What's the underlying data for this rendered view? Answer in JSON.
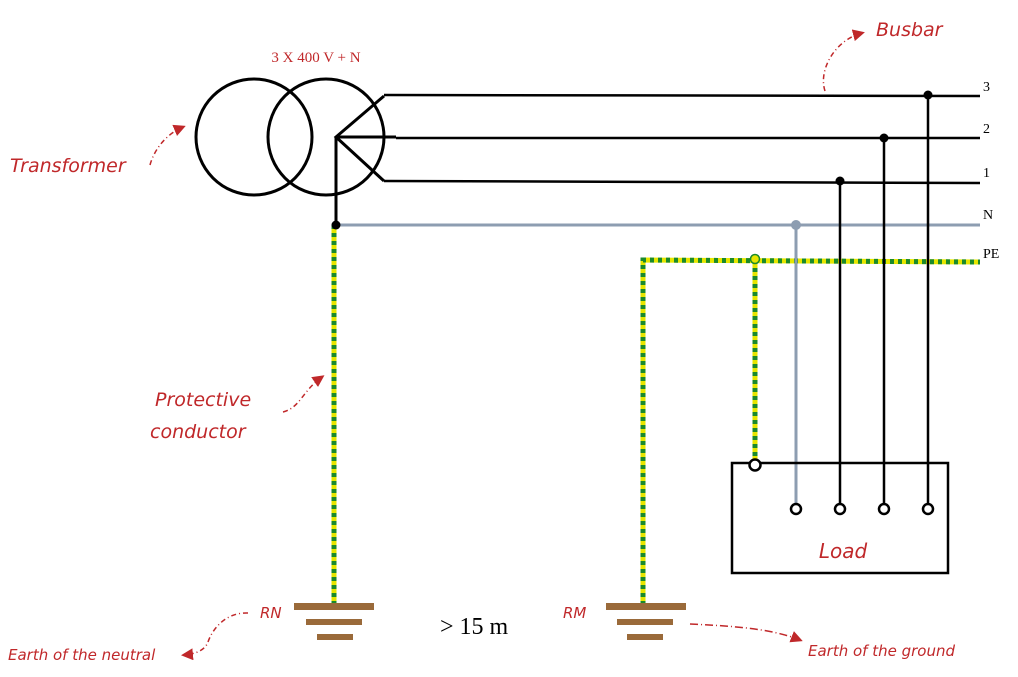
{
  "transformer": {
    "rating": "3 X 400 V + N",
    "annotation": "Transformer"
  },
  "busbar": {
    "annotation": "Busbar",
    "lines": [
      "3",
      "2",
      "1",
      "N",
      "PE"
    ]
  },
  "protective_conductor": {
    "annotation_line1": "Protective",
    "annotation_line2": "conductor"
  },
  "load": {
    "label": "Load"
  },
  "earths": {
    "neutral_code": "RN",
    "neutral_annotation": "Earth of the neutral",
    "ground_code": "RM",
    "ground_annotation": "Earth of the ground",
    "separation": "> 15 m"
  },
  "colors": {
    "phase": "#000000",
    "neutral": "#8d9db1",
    "pe_yellow": "#e6e600",
    "pe_green": "#1a8a2a",
    "earth_plate": "#9a6a3a",
    "annotation": "#c0282a"
  }
}
